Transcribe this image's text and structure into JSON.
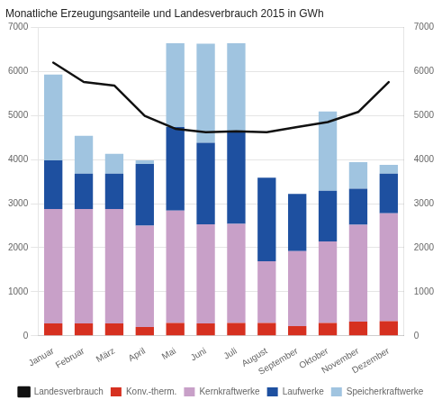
{
  "chart_data": {
    "type": "bar",
    "title": "Monatliche Erzeugungsanteile und Landesverbrauch 2015 in GWh",
    "categories": [
      "Januar",
      "Februar",
      "März",
      "April",
      "Mai",
      "Juni",
      "Juli",
      "August",
      "September",
      "Oktober",
      "November",
      "Dezember"
    ],
    "series": [
      {
        "name": "Konv.-therm.",
        "color": "#d63020",
        "values": [
          280,
          280,
          280,
          200,
          290,
          280,
          290,
          290,
          220,
          290,
          320,
          330
        ]
      },
      {
        "name": "Kernkraftwerke",
        "color": "#c8a0c8",
        "values": [
          2600,
          2600,
          2600,
          2300,
          2550,
          2250,
          2250,
          1400,
          1700,
          1850,
          2200,
          2450
        ]
      },
      {
        "name": "Laufwerke",
        "color": "#1e50a0",
        "values": [
          1100,
          800,
          800,
          1400,
          1900,
          1850,
          2100,
          1900,
          1300,
          1150,
          820,
          900
        ]
      },
      {
        "name": "Speicherkraftwerke",
        "color": "#a0c4e0",
        "values": [
          1950,
          860,
          450,
          80,
          1900,
          2250,
          2000,
          0,
          0,
          1800,
          600,
          200
        ]
      },
      {
        "name": "Landesverbrauch",
        "color": "#111111",
        "type": "line",
        "axis": "y2",
        "values": [
          6200,
          5760,
          5680,
          4990,
          4700,
          4620,
          4640,
          4620,
          4740,
          4850,
          5080,
          5760
        ]
      }
    ],
    "stacked": true,
    "ylim": [
      0,
      7000
    ],
    "yticks": [
      0,
      1000,
      2000,
      3000,
      4000,
      5000,
      6000,
      7000
    ],
    "y2lim": [
      0,
      7000
    ],
    "y2ticks": [
      0,
      1000,
      2000,
      3000,
      4000,
      5000,
      6000,
      7000
    ],
    "grid": true,
    "legend": "bottom"
  }
}
